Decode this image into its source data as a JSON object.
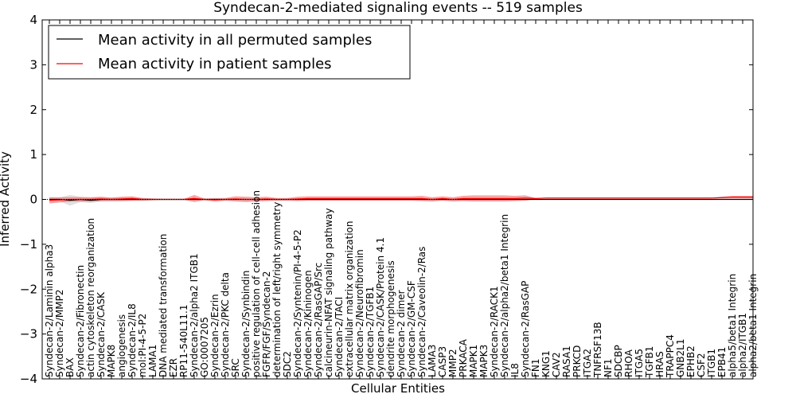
{
  "chart_data": {
    "type": "line",
    "title": "Syndecan-2-mediated signaling events -- 519 samples",
    "xlabel": "Cellular Entities",
    "ylabel": "Inferred Activity",
    "ylim": [
      -4,
      4
    ],
    "yticks": [
      -4,
      -3,
      -2,
      -1,
      0,
      1,
      2,
      3,
      4
    ],
    "grid": false,
    "legend_position": "top-left",
    "categories": [
      "Syndecan-2/Laminin alpha3",
      "Syndecan-2/MMP2",
      "BAX",
      "Syndecan-2/Fibronectin",
      "actin cytoskeleton reorganization",
      "Syndecan-2/CASK",
      "MAPK8",
      "angiogenesis",
      "Syndecan-2/IL8",
      "mol:PI-4-5-P2",
      "LAMA1",
      "DNA mediated transformation",
      "EZR",
      "RP11-540L11.1",
      "Syndecan-2/alpha2 ITGB1",
      "GO:0007205",
      "Syndecan-2/Ezrin",
      "Syndecan-2/PKC delta",
      "SRC",
      "Syndecan-2/Synbindin",
      "positive regulation of cell-cell adhesion",
      "FGFR/FGF/Syndecan-2",
      "determination of left/right symmetry",
      "SDC2",
      "Syndecan-2/Syntenin/PI-4-5-P2",
      "Syndecan-2/Kininogen",
      "Syndecan-2/RasGAP/Src",
      "calcineurin-NFAT signaling pathway",
      "Syndecan-2/TACI",
      "extracellular matrix organization",
      "Syndecan-2/Neurofibromin",
      "Syndecan-2/TGFB1",
      "Syndecan-2/CASK/Protein 4.1",
      "dendrite morphogenesis",
      "Syndecan-2 dimer",
      "Syndecan-2/GM-CSF",
      "Syndecan-2/Caveolin-2/Ras",
      "LAMA3",
      "CASP3",
      "MMP2",
      "PRKACA",
      "MAPK1",
      "MAPK3",
      "Syndecan-2/RACK1",
      "Syndecan-2/alpha2/beta1 Integrin",
      "IL8",
      "Syndecan-2/RasGAP",
      "FN1",
      "KNG1",
      "CAV2",
      "RASA1",
      "PRKCD",
      "ITGA2",
      "TNFRSF13B",
      "NF1",
      "SDCBP",
      "RHOA",
      "ITGA5",
      "TGFB1",
      "HRAS",
      "TRAPPC4",
      "GNB2L1",
      "EPHB2",
      "CSF2",
      "ITGB1",
      "EPB41",
      "alpha5/beta1 Integrin",
      "alpha2/ITGB1",
      "alpha2/beta1 Integrin"
    ],
    "series": [
      {
        "name": "Mean activity in all permuted samples",
        "color": "#000000",
        "values": [
          0.0,
          0.0,
          -0.02,
          0.0,
          -0.02,
          0.0,
          0.0,
          0.0,
          0.0,
          0.0,
          0.0,
          0.0,
          0.0,
          0.0,
          0.0,
          0.0,
          0.0,
          0.0,
          0.0,
          0.0,
          0.0,
          0.0,
          0.0,
          0.0,
          0.0,
          0.0,
          0.0,
          0.0,
          0.0,
          0.0,
          0.0,
          0.0,
          0.0,
          0.0,
          0.0,
          0.0,
          0.0,
          0.0,
          0.0,
          0.0,
          0.0,
          0.0,
          0.0,
          0.0,
          0.0,
          0.0,
          0.0,
          0.0,
          0.0,
          0.0,
          0.0,
          0.0,
          0.0,
          0.0,
          0.0,
          0.0,
          0.0,
          0.0,
          0.0,
          0.0,
          0.0,
          0.0,
          0.0,
          0.0,
          0.0,
          0.0,
          0.0,
          0.0,
          0.0
        ],
        "spread": [
          0.04,
          0.04,
          0.12,
          0.06,
          0.06,
          0.05,
          0.04,
          0.04,
          0.04,
          0.03,
          0.02,
          0.02,
          0.02,
          0.02,
          0.03,
          0.02,
          0.02,
          0.02,
          0.02,
          0.02,
          0.02,
          0.02,
          0.02,
          0.02,
          0.02,
          0.02,
          0.02,
          0.02,
          0.02,
          0.02,
          0.02,
          0.02,
          0.02,
          0.02,
          0.02,
          0.02,
          0.02,
          0.02,
          0.02,
          0.02,
          0.02,
          0.02,
          0.02,
          0.02,
          0.02,
          0.02,
          0.02,
          0.01,
          0.01,
          0.01,
          0.01,
          0.01,
          0.01,
          0.01,
          0.01,
          0.01,
          0.01,
          0.01,
          0.01,
          0.01,
          0.01,
          0.01,
          0.01,
          0.01,
          0.01,
          0.01,
          0.01,
          0.01,
          0.01
        ]
      },
      {
        "name": "Mean activity in patient samples",
        "color": "#ff0000",
        "values": [
          -0.02,
          -0.01,
          0.0,
          0.0,
          0.0,
          0.01,
          0.0,
          0.01,
          0.02,
          0.0,
          0.0,
          0.0,
          0.0,
          0.0,
          0.02,
          0.0,
          -0.01,
          0.0,
          0.01,
          0.0,
          0.0,
          0.01,
          0.0,
          0.0,
          0.01,
          0.02,
          0.02,
          0.02,
          0.02,
          0.02,
          0.02,
          0.02,
          0.02,
          0.02,
          0.02,
          0.02,
          0.02,
          0.0,
          0.02,
          0.0,
          0.02,
          0.02,
          0.02,
          0.02,
          0.02,
          0.02,
          0.03,
          0.02,
          0.03,
          0.03,
          0.03,
          0.03,
          0.03,
          0.03,
          0.03,
          0.03,
          0.03,
          0.03,
          0.03,
          0.03,
          0.03,
          0.03,
          0.03,
          0.03,
          0.03,
          0.04,
          0.05,
          0.05,
          0.05
        ],
        "spread": [
          0.07,
          0.06,
          0.05,
          0.05,
          0.05,
          0.05,
          0.04,
          0.05,
          0.05,
          0.03,
          0.02,
          0.01,
          0.01,
          0.01,
          0.08,
          0.02,
          0.04,
          0.03,
          0.06,
          0.06,
          0.05,
          0.05,
          0.03,
          0.03,
          0.05,
          0.05,
          0.05,
          0.05,
          0.05,
          0.05,
          0.05,
          0.05,
          0.05,
          0.05,
          0.05,
          0.05,
          0.06,
          0.05,
          0.05,
          0.05,
          0.06,
          0.07,
          0.07,
          0.07,
          0.07,
          0.06,
          0.06,
          0.01,
          0.01,
          0.01,
          0.01,
          0.01,
          0.01,
          0.01,
          0.01,
          0.01,
          0.01,
          0.01,
          0.01,
          0.01,
          0.01,
          0.01,
          0.01,
          0.01,
          0.01,
          0.02,
          0.03,
          0.03,
          0.03
        ]
      }
    ]
  }
}
